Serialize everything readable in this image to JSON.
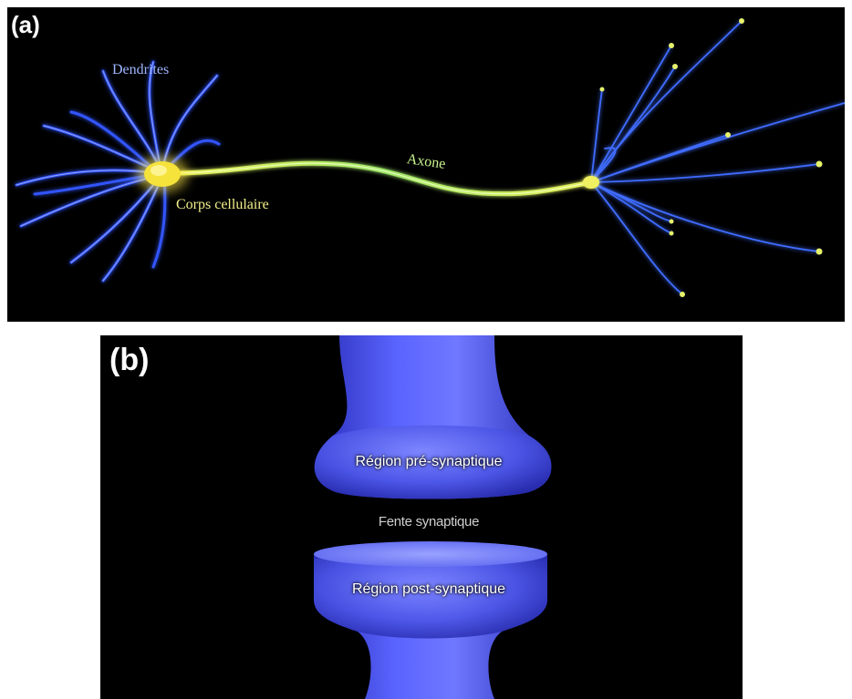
{
  "panel_a": {
    "letter": "(a)",
    "labels": {
      "dendrites": "Dendrites",
      "soma": "Corps cellulaire",
      "axon": "Axone"
    },
    "colors": {
      "dendrite": "#2f5bff",
      "soma": "#ffe94a",
      "axon": "#c7f24a"
    }
  },
  "panel_b": {
    "letter": "(b)",
    "labels": {
      "pre": "Région pré-synaptique",
      "cleft": "Fente synaptique",
      "post": "Région post-synaptique"
    },
    "colors": {
      "terminal": "#4a56e8",
      "terminal_light": "#8a92ff"
    }
  }
}
